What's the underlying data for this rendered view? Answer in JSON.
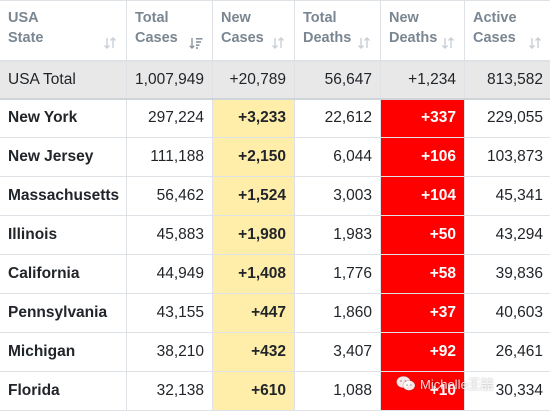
{
  "table": {
    "headers": [
      {
        "line1": "USA",
        "line2": "State",
        "sort": "neutral"
      },
      {
        "line1": "Total",
        "line2": "Cases",
        "sort": "desc"
      },
      {
        "line1": "New",
        "line2": "Cases",
        "sort": "neutral"
      },
      {
        "line1": "Total",
        "line2": "Deaths",
        "sort": "neutral"
      },
      {
        "line1": "New",
        "line2": "Deaths",
        "sort": "neutral"
      },
      {
        "line1": "Active",
        "line2": "Cases",
        "sort": "neutral"
      }
    ],
    "total": {
      "state": "USA Total",
      "total_cases": "1,007,949",
      "new_cases": "+20,789",
      "total_deaths": "56,647",
      "new_deaths": "+1,234",
      "active_cases": "813,582"
    },
    "rows": [
      {
        "state": "New York",
        "total_cases": "297,224",
        "new_cases": "+3,233",
        "total_deaths": "22,612",
        "new_deaths": "+337",
        "active_cases": "229,055"
      },
      {
        "state": "New Jersey",
        "total_cases": "111,188",
        "new_cases": "+2,150",
        "total_deaths": "6,044",
        "new_deaths": "+106",
        "active_cases": "103,873"
      },
      {
        "state": "Massachusetts",
        "total_cases": "56,462",
        "new_cases": "+1,524",
        "total_deaths": "3,003",
        "new_deaths": "+104",
        "active_cases": "45,341"
      },
      {
        "state": "Illinois",
        "total_cases": "45,883",
        "new_cases": "+1,980",
        "total_deaths": "1,983",
        "new_deaths": "+50",
        "active_cases": "43,294"
      },
      {
        "state": "California",
        "total_cases": "44,949",
        "new_cases": "+1,408",
        "total_deaths": "1,776",
        "new_deaths": "+58",
        "active_cases": "39,836"
      },
      {
        "state": "Pennsylvania",
        "total_cases": "43,155",
        "new_cases": "+447",
        "total_deaths": "1,860",
        "new_deaths": "+37",
        "active_cases": "40,603"
      },
      {
        "state": "Michigan",
        "total_cases": "38,210",
        "new_cases": "+432",
        "total_deaths": "3,407",
        "new_deaths": "+92",
        "active_cases": "26,461"
      },
      {
        "state": "Florida",
        "total_cases": "32,138",
        "new_cases": "+610",
        "total_deaths": "1,088",
        "new_deaths": "+10",
        "active_cases": "30,334"
      }
    ]
  },
  "colors": {
    "header_text": "#7a8691",
    "total_row_bg": "#e8e8e8",
    "new_cases_bg": "#ffeeaa",
    "new_deaths_bg": "#ff0000",
    "border": "#dee2e6"
  },
  "watermark": {
    "icon": "wechat-icon",
    "text": "Michelle王喆"
  }
}
